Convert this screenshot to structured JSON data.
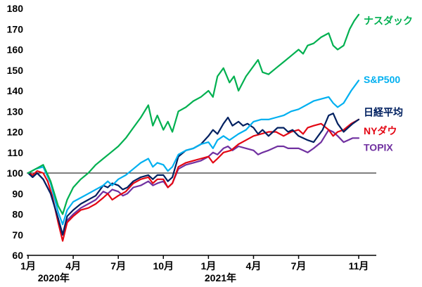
{
  "chart_data": {
    "type": "line",
    "title": "",
    "x_unit": "months since 2020-01 (0 = 2020-01, 22 = 2021-11)",
    "x_range": [
      0,
      22
    ],
    "ylim": [
      60,
      180
    ],
    "ytick_step": 10,
    "baseline": 100,
    "grid": "off",
    "legend_position": "right-of-lines",
    "x_ticks": [
      {
        "t": 0,
        "label": "1月"
      },
      {
        "t": 3,
        "label": "4月"
      },
      {
        "t": 6,
        "label": "7月"
      },
      {
        "t": 9,
        "label": "10月"
      },
      {
        "t": 12,
        "label": "1月"
      },
      {
        "t": 15,
        "label": "4月"
      },
      {
        "t": 18,
        "label": "7月"
      },
      {
        "t": 22,
        "label": "11月"
      }
    ],
    "year_labels": [
      {
        "t": 1.7,
        "label": "2020年"
      },
      {
        "t": 12.8,
        "label": "2021年"
      }
    ],
    "series": [
      {
        "key": "topix",
        "label": "TOPIX",
        "color": "#7030A0",
        "label_v": 112.5,
        "points": [
          [
            0,
            100
          ],
          [
            0.3,
            98
          ],
          [
            0.6,
            100
          ],
          [
            1,
            97
          ],
          [
            1.5,
            90
          ],
          [
            2,
            78
          ],
          [
            2.3,
            70
          ],
          [
            2.6,
            77
          ],
          [
            3,
            80
          ],
          [
            3.5,
            83
          ],
          [
            4,
            85
          ],
          [
            4.5,
            87
          ],
          [
            5,
            91
          ],
          [
            5.3,
            90
          ],
          [
            5.6,
            92
          ],
          [
            6,
            91
          ],
          [
            6.3,
            89
          ],
          [
            6.6,
            90
          ],
          [
            7,
            93
          ],
          [
            7.5,
            94
          ],
          [
            8,
            96
          ],
          [
            8.3,
            94
          ],
          [
            8.6,
            95
          ],
          [
            9,
            96
          ],
          [
            9.3,
            93
          ],
          [
            9.6,
            95
          ],
          [
            10,
            102
          ],
          [
            10.5,
            104
          ],
          [
            11,
            105
          ],
          [
            11.5,
            106
          ],
          [
            12,
            108
          ],
          [
            12.3,
            110
          ],
          [
            12.6,
            109
          ],
          [
            13,
            112
          ],
          [
            13.3,
            113
          ],
          [
            13.6,
            111
          ],
          [
            14,
            113
          ],
          [
            14.5,
            112
          ],
          [
            15,
            111
          ],
          [
            15.3,
            109
          ],
          [
            15.6,
            110
          ],
          [
            16,
            111
          ],
          [
            16.3,
            112
          ],
          [
            16.6,
            113
          ],
          [
            17,
            113
          ],
          [
            17.3,
            112
          ],
          [
            17.6,
            112
          ],
          [
            18,
            112
          ],
          [
            18.3,
            111
          ],
          [
            18.6,
            110
          ],
          [
            19,
            112
          ],
          [
            19.5,
            115
          ],
          [
            20,
            121
          ],
          [
            20.3,
            120
          ],
          [
            20.6,
            118
          ],
          [
            21,
            115
          ],
          [
            21.3,
            116
          ],
          [
            21.6,
            117
          ],
          [
            22,
            117
          ]
        ]
      },
      {
        "key": "nydow",
        "label": "NYダウ",
        "color": "#E30613",
        "label_v": 120.5,
        "points": [
          [
            0,
            100
          ],
          [
            0.3,
            99
          ],
          [
            0.6,
            101
          ],
          [
            1,
            100
          ],
          [
            1.3,
            96
          ],
          [
            1.6,
            89
          ],
          [
            2,
            76
          ],
          [
            2.3,
            67
          ],
          [
            2.6,
            76
          ],
          [
            3,
            79
          ],
          [
            3.5,
            82
          ],
          [
            4,
            83
          ],
          [
            4.5,
            85
          ],
          [
            5,
            88
          ],
          [
            5.3,
            90
          ],
          [
            5.6,
            87
          ],
          [
            6,
            89
          ],
          [
            6.5,
            91
          ],
          [
            7,
            95
          ],
          [
            7.5,
            97
          ],
          [
            8,
            98
          ],
          [
            8.3,
            95
          ],
          [
            8.6,
            97
          ],
          [
            9,
            97
          ],
          [
            9.3,
            93
          ],
          [
            9.6,
            95
          ],
          [
            10,
            103
          ],
          [
            10.5,
            105
          ],
          [
            11,
            106
          ],
          [
            11.5,
            107
          ],
          [
            12,
            108
          ],
          [
            12.3,
            105
          ],
          [
            12.6,
            107
          ],
          [
            13,
            110
          ],
          [
            13.5,
            111
          ],
          [
            14,
            114
          ],
          [
            14.5,
            116
          ],
          [
            15,
            118
          ],
          [
            15.5,
            119
          ],
          [
            16,
            120
          ],
          [
            16.5,
            120
          ],
          [
            17,
            118
          ],
          [
            17.5,
            120
          ],
          [
            18,
            121
          ],
          [
            18.3,
            119
          ],
          [
            18.6,
            122
          ],
          [
            19,
            123
          ],
          [
            19.5,
            124
          ],
          [
            20,
            121
          ],
          [
            20.3,
            118
          ],
          [
            20.6,
            120
          ],
          [
            21,
            121
          ],
          [
            21.5,
            124
          ],
          [
            22,
            126
          ]
        ]
      },
      {
        "key": "nikkei",
        "label": "日経平均",
        "color": "#002060",
        "label_v": 129.5,
        "points": [
          [
            0,
            100
          ],
          [
            0.3,
            98
          ],
          [
            0.6,
            100
          ],
          [
            1,
            97
          ],
          [
            1.5,
            90
          ],
          [
            2,
            78
          ],
          [
            2.3,
            70
          ],
          [
            2.6,
            79
          ],
          [
            3,
            82
          ],
          [
            3.5,
            85
          ],
          [
            4,
            87
          ],
          [
            4.5,
            89
          ],
          [
            5,
            94
          ],
          [
            5.3,
            93
          ],
          [
            5.6,
            95
          ],
          [
            6,
            94
          ],
          [
            6.3,
            92
          ],
          [
            6.6,
            93
          ],
          [
            7,
            96
          ],
          [
            7.5,
            98
          ],
          [
            8,
            99
          ],
          [
            8.3,
            97
          ],
          [
            8.6,
            99
          ],
          [
            9,
            99
          ],
          [
            9.3,
            96
          ],
          [
            9.6,
            98
          ],
          [
            10,
            108
          ],
          [
            10.5,
            111
          ],
          [
            11,
            112
          ],
          [
            11.5,
            114
          ],
          [
            12,
            118
          ],
          [
            12.3,
            121
          ],
          [
            12.6,
            119
          ],
          [
            13,
            124
          ],
          [
            13.3,
            127
          ],
          [
            13.6,
            123
          ],
          [
            14,
            125
          ],
          [
            14.3,
            123
          ],
          [
            14.6,
            124
          ],
          [
            15,
            122
          ],
          [
            15.3,
            119
          ],
          [
            15.6,
            121
          ],
          [
            16,
            118
          ],
          [
            16.3,
            120
          ],
          [
            16.6,
            122
          ],
          [
            17,
            122
          ],
          [
            17.3,
            120
          ],
          [
            17.6,
            121
          ],
          [
            18,
            118
          ],
          [
            18.3,
            117
          ],
          [
            18.6,
            116
          ],
          [
            19,
            115
          ],
          [
            19.3,
            118
          ],
          [
            19.6,
            121
          ],
          [
            20,
            128
          ],
          [
            20.3,
            129
          ],
          [
            20.6,
            124
          ],
          [
            21,
            120
          ],
          [
            21.3,
            122
          ],
          [
            21.6,
            124
          ],
          [
            22,
            126
          ]
        ]
      },
      {
        "key": "sp500",
        "label": "S&P500",
        "color": "#00B0F0",
        "label_v": 145.5,
        "points": [
          [
            0,
            100
          ],
          [
            0.5,
            102
          ],
          [
            1,
            103
          ],
          [
            1.5,
            95
          ],
          [
            2,
            81
          ],
          [
            2.3,
            75
          ],
          [
            2.6,
            82
          ],
          [
            3,
            86
          ],
          [
            3.5,
            88
          ],
          [
            4,
            90
          ],
          [
            4.5,
            92
          ],
          [
            5,
            94
          ],
          [
            5.3,
            96
          ],
          [
            5.6,
            94
          ],
          [
            6,
            97
          ],
          [
            6.5,
            99
          ],
          [
            7,
            102
          ],
          [
            7.5,
            105
          ],
          [
            8,
            107
          ],
          [
            8.3,
            103
          ],
          [
            8.6,
            105
          ],
          [
            9,
            104
          ],
          [
            9.3,
            101
          ],
          [
            9.6,
            103
          ],
          [
            10,
            109
          ],
          [
            10.5,
            111
          ],
          [
            11,
            112
          ],
          [
            11.5,
            114
          ],
          [
            12,
            115
          ],
          [
            12.3,
            112
          ],
          [
            12.6,
            116
          ],
          [
            13,
            118
          ],
          [
            13.4,
            116
          ],
          [
            14,
            119
          ],
          [
            14.5,
            121
          ],
          [
            15,
            125
          ],
          [
            15.5,
            126
          ],
          [
            16,
            126
          ],
          [
            16.5,
            127
          ],
          [
            17,
            128
          ],
          [
            17.5,
            130
          ],
          [
            18,
            131
          ],
          [
            18.5,
            133
          ],
          [
            19,
            135
          ],
          [
            19.5,
            136
          ],
          [
            20,
            137
          ],
          [
            20.3,
            134
          ],
          [
            20.6,
            132
          ],
          [
            21,
            134
          ],
          [
            21.5,
            140
          ],
          [
            22,
            145
          ]
        ]
      },
      {
        "key": "nasdaq",
        "label": "ナスダック",
        "color": "#00B050",
        "label_v": 174,
        "points": [
          [
            0,
            100
          ],
          [
            0.5,
            102
          ],
          [
            1,
            104
          ],
          [
            1.5,
            96
          ],
          [
            2,
            84
          ],
          [
            2.3,
            80
          ],
          [
            2.6,
            87
          ],
          [
            3,
            93
          ],
          [
            3.5,
            97
          ],
          [
            4,
            100
          ],
          [
            4.5,
            104
          ],
          [
            5,
            107
          ],
          [
            5.5,
            110
          ],
          [
            6,
            113
          ],
          [
            6.5,
            117
          ],
          [
            7,
            122
          ],
          [
            7.5,
            127
          ],
          [
            8,
            133
          ],
          [
            8.3,
            123
          ],
          [
            8.6,
            128
          ],
          [
            9,
            121
          ],
          [
            9.3,
            125
          ],
          [
            9.6,
            120
          ],
          [
            10,
            130
          ],
          [
            10.5,
            132
          ],
          [
            11,
            135
          ],
          [
            11.5,
            137
          ],
          [
            12,
            140
          ],
          [
            12.3,
            137
          ],
          [
            12.6,
            147
          ],
          [
            13,
            151
          ],
          [
            13.4,
            144
          ],
          [
            13.7,
            147
          ],
          [
            14,
            140
          ],
          [
            14.5,
            147
          ],
          [
            15,
            152
          ],
          [
            15.3,
            155
          ],
          [
            15.6,
            149
          ],
          [
            16,
            148
          ],
          [
            16.5,
            151
          ],
          [
            17,
            154
          ],
          [
            17.5,
            157
          ],
          [
            18,
            160
          ],
          [
            18.3,
            158
          ],
          [
            18.6,
            162
          ],
          [
            19,
            163
          ],
          [
            19.5,
            166
          ],
          [
            20,
            168
          ],
          [
            20.3,
            162
          ],
          [
            20.6,
            160
          ],
          [
            21,
            162
          ],
          [
            21.4,
            170
          ],
          [
            21.7,
            174
          ],
          [
            22,
            177
          ]
        ]
      }
    ]
  }
}
